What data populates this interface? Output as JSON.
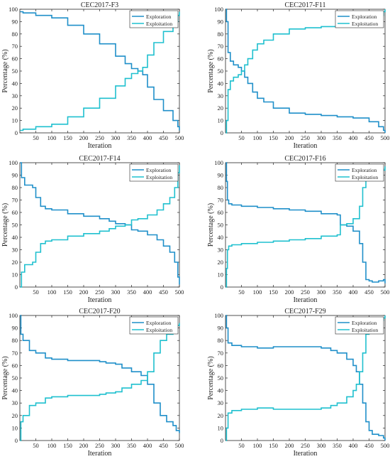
{
  "figure": {
    "description": "Six panels of exploration/exploitation percentage vs iteration"
  },
  "colors": {
    "exploration": "#1f8fc9",
    "exploitation": "#1fc0cf",
    "axis": "#262626",
    "text": "#222222"
  },
  "chart_data": [
    {
      "type": "line",
      "title": "CEC2017-F3",
      "xlabel": "Iteration",
      "ylabel": "Percentage (%)",
      "xlim": [
        0,
        500
      ],
      "ylim": [
        0,
        100
      ],
      "xticks": [
        50,
        100,
        150,
        200,
        250,
        300,
        350,
        400,
        450,
        500
      ],
      "yticks": [
        0,
        10,
        20,
        30,
        40,
        50,
        60,
        70,
        80,
        90,
        100
      ],
      "legend": "top-right",
      "grid": false,
      "x": [
        1,
        10,
        50,
        100,
        150,
        200,
        250,
        300,
        330,
        350,
        370,
        385,
        400,
        420,
        450,
        480,
        495,
        500
      ],
      "series": [
        {
          "name": "Exploration",
          "values": [
            98,
            97,
            95,
            93,
            87,
            80,
            72,
            62,
            56,
            52,
            50,
            47,
            37,
            27,
            18,
            10,
            5,
            2
          ]
        },
        {
          "name": "Exploitation",
          "values": [
            2,
            3,
            5,
            7,
            13,
            20,
            28,
            38,
            44,
            48,
            50,
            53,
            63,
            73,
            82,
            90,
            95,
            98
          ]
        }
      ]
    },
    {
      "type": "line",
      "title": "CEC2017-F11",
      "xlabel": "Iteration",
      "ylabel": "Percentage (%)",
      "xlim": [
        0,
        500
      ],
      "ylim": [
        0,
        100
      ],
      "xticks": [
        50,
        100,
        150,
        200,
        250,
        300,
        350,
        400,
        450,
        500
      ],
      "yticks": [
        0,
        10,
        20,
        30,
        40,
        50,
        60,
        70,
        80,
        90,
        100
      ],
      "legend": "top-right",
      "grid": false,
      "x": [
        1,
        3,
        8,
        15,
        25,
        40,
        50,
        60,
        70,
        85,
        100,
        120,
        150,
        200,
        250,
        300,
        350,
        400,
        450,
        480,
        495,
        500
      ],
      "series": [
        {
          "name": "Exploration",
          "values": [
            100,
            90,
            65,
            58,
            55,
            53,
            50,
            45,
            40,
            33,
            28,
            25,
            20,
            16,
            15,
            14,
            13,
            12,
            9,
            5,
            2,
            0
          ]
        },
        {
          "name": "Exploitation",
          "values": [
            0,
            10,
            35,
            42,
            45,
            47,
            50,
            55,
            60,
            67,
            72,
            75,
            80,
            84,
            85,
            86,
            87,
            88,
            91,
            95,
            98,
            100
          ]
        }
      ]
    },
    {
      "type": "line",
      "title": "CEC2017-F14",
      "xlabel": "Iteration",
      "ylabel": "Percentage (%)",
      "xlim": [
        0,
        500
      ],
      "ylim": [
        0,
        100
      ],
      "xticks": [
        50,
        100,
        150,
        200,
        250,
        300,
        350,
        400,
        450,
        500
      ],
      "yticks": [
        0,
        10,
        20,
        30,
        40,
        50,
        60,
        70,
        80,
        90,
        100
      ],
      "legend": "top-right",
      "grid": false,
      "x": [
        1,
        5,
        15,
        40,
        50,
        65,
        80,
        100,
        150,
        200,
        250,
        280,
        300,
        330,
        350,
        370,
        400,
        430,
        450,
        470,
        485,
        495,
        500
      ],
      "series": [
        {
          "name": "Exploration",
          "values": [
            100,
            88,
            82,
            80,
            72,
            65,
            63,
            62,
            59,
            57,
            55,
            53,
            51,
            50,
            46,
            45,
            42,
            38,
            33,
            28,
            20,
            8,
            2
          ]
        },
        {
          "name": "Exploitation",
          "values": [
            0,
            12,
            18,
            20,
            28,
            35,
            37,
            38,
            41,
            43,
            45,
            47,
            49,
            50,
            54,
            55,
            58,
            62,
            67,
            72,
            80,
            92,
            98
          ]
        }
      ]
    },
    {
      "type": "line",
      "title": "CEC2017-F16",
      "xlabel": "Iteration",
      "ylabel": "Percentage (%)",
      "xlim": [
        0,
        500
      ],
      "ylim": [
        0,
        100
      ],
      "xticks": [
        50,
        100,
        150,
        200,
        250,
        300,
        350,
        400,
        450,
        500
      ],
      "yticks": [
        0,
        10,
        20,
        30,
        40,
        50,
        60,
        70,
        80,
        90,
        100
      ],
      "legend": "top-right",
      "grid": false,
      "x": [
        1,
        3,
        6,
        10,
        20,
        50,
        100,
        150,
        200,
        250,
        300,
        350,
        360,
        380,
        400,
        420,
        430,
        440,
        450,
        460,
        480,
        495,
        500
      ],
      "series": [
        {
          "name": "Exploration",
          "values": [
            100,
            85,
            70,
            67,
            66,
            65,
            64,
            63,
            62,
            61,
            59,
            58,
            50,
            49,
            45,
            35,
            20,
            6,
            5,
            4,
            5,
            6,
            3
          ]
        },
        {
          "name": "Exploitation",
          "values": [
            0,
            15,
            30,
            33,
            34,
            35,
            36,
            37,
            38,
            39,
            41,
            42,
            50,
            51,
            55,
            65,
            80,
            94,
            95,
            96,
            95,
            94,
            97
          ]
        }
      ]
    },
    {
      "type": "line",
      "title": "CEC2017-F20",
      "xlabel": "Iteration",
      "ylabel": "Percentage (%)",
      "xlim": [
        0,
        500
      ],
      "ylim": [
        0,
        100
      ],
      "xticks": [
        50,
        100,
        150,
        200,
        250,
        300,
        350,
        400,
        450,
        500
      ],
      "yticks": [
        0,
        10,
        20,
        30,
        40,
        50,
        60,
        70,
        80,
        90,
        100
      ],
      "legend": "top-right",
      "grid": false,
      "x": [
        1,
        3,
        10,
        30,
        50,
        80,
        100,
        150,
        200,
        250,
        270,
        300,
        320,
        350,
        380,
        400,
        420,
        440,
        460,
        480,
        490,
        500
      ],
      "series": [
        {
          "name": "Exploration",
          "values": [
            100,
            85,
            80,
            72,
            70,
            66,
            65,
            64,
            64,
            63,
            62,
            61,
            58,
            55,
            52,
            45,
            30,
            20,
            15,
            12,
            8,
            6
          ]
        },
        {
          "name": "Exploitation",
          "values": [
            0,
            15,
            20,
            28,
            30,
            34,
            35,
            36,
            36,
            37,
            38,
            39,
            42,
            45,
            48,
            55,
            70,
            80,
            85,
            88,
            92,
            94
          ]
        }
      ]
    },
    {
      "type": "line",
      "title": "CEC2017-F29",
      "xlabel": "Iteration",
      "ylabel": "Percentage (%)",
      "xlim": [
        0,
        500
      ],
      "ylim": [
        0,
        100
      ],
      "xticks": [
        50,
        100,
        150,
        200,
        250,
        300,
        350,
        400,
        450,
        500
      ],
      "yticks": [
        0,
        10,
        20,
        30,
        40,
        50,
        60,
        70,
        80,
        90,
        100
      ],
      "legend": "top-right",
      "grid": false,
      "x": [
        1,
        3,
        8,
        20,
        50,
        100,
        150,
        200,
        250,
        300,
        330,
        350,
        380,
        400,
        410,
        420,
        430,
        440,
        450,
        460,
        480,
        495,
        500
      ],
      "series": [
        {
          "name": "Exploration",
          "values": [
            100,
            90,
            78,
            76,
            75,
            74,
            75,
            75,
            75,
            74,
            72,
            70,
            65,
            60,
            55,
            45,
            30,
            15,
            8,
            5,
            4,
            2,
            0
          ]
        },
        {
          "name": "Exploitation",
          "values": [
            0,
            10,
            22,
            24,
            25,
            26,
            25,
            25,
            25,
            26,
            28,
            30,
            35,
            40,
            45,
            55,
            70,
            85,
            92,
            95,
            96,
            98,
            100
          ]
        }
      ]
    }
  ]
}
